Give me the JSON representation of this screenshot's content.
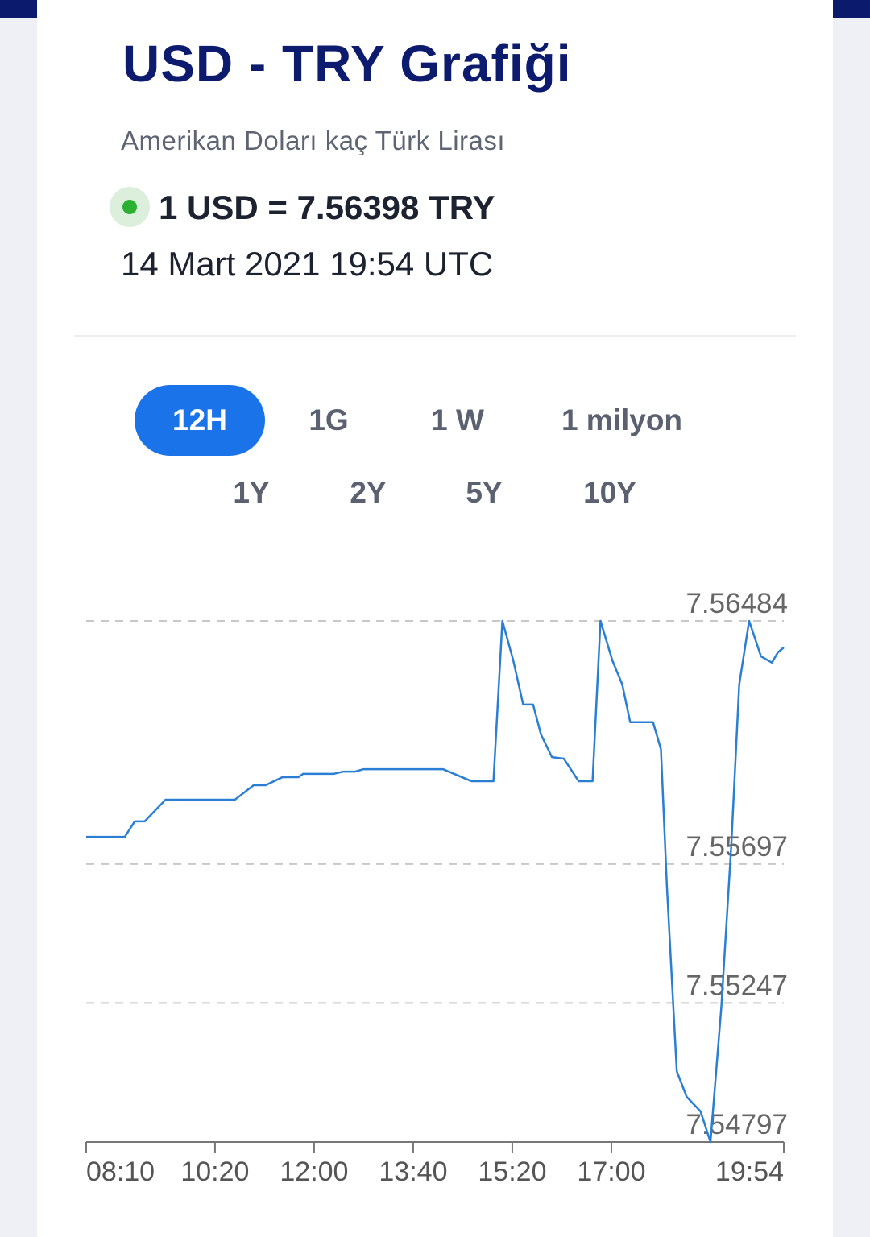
{
  "header": {
    "title": "USD - TRY Grafiği",
    "subtitle": "Amerikan Doları kaç Türk Lirası",
    "rate": "1 USD = 7.56398 TRY",
    "timestamp": "14 Mart 2021 19:54 UTC"
  },
  "tabs": [
    {
      "label": "12H",
      "selected": true
    },
    {
      "label": "1G",
      "selected": false
    },
    {
      "label": "1 W",
      "selected": false
    },
    {
      "label": "1 milyon",
      "selected": false
    },
    {
      "label": "1Y",
      "selected": false
    },
    {
      "label": "2Y",
      "selected": false
    },
    {
      "label": "5Y",
      "selected": false
    },
    {
      "label": "10Y",
      "selected": false
    }
  ],
  "chart_data": {
    "type": "line",
    "color": "#2a7fd4",
    "x": [
      "08:10",
      "08:49",
      "08:59",
      "09:09",
      "09:30",
      "10:40",
      "10:59",
      "11:11",
      "11:28",
      "11:44",
      "11:49",
      "12:20",
      "12:29",
      "12:41",
      "12:50",
      "14:10",
      "14:39",
      "15:01",
      "15:10",
      "15:21",
      "15:31",
      "15:41",
      "15:49",
      "16:00",
      "16:12",
      "16:27",
      "16:41",
      "16:49",
      "17:01",
      "17:11",
      "17:19",
      "17:42",
      "17:50",
      "17:56",
      "18:06",
      "18:16",
      "18:30",
      "18:40",
      "18:51",
      "19:01",
      "19:09",
      "19:19",
      "19:31",
      "19:42",
      "19:48",
      "19:54"
    ],
    "values": [
      7.55785,
      7.55785,
      7.55835,
      7.55835,
      7.55905,
      7.55905,
      7.55952,
      7.55952,
      7.55978,
      7.55978,
      7.55989,
      7.55989,
      7.55996,
      7.55996,
      7.56004,
      7.56004,
      7.55965,
      7.55965,
      7.56484,
      7.56356,
      7.56213,
      7.56213,
      7.56116,
      7.56043,
      7.56038,
      7.55965,
      7.55965,
      7.56484,
      7.56356,
      7.56278,
      7.56156,
      7.56156,
      7.56069,
      7.55626,
      7.55026,
      7.54943,
      7.54896,
      7.54797,
      7.55235,
      7.55757,
      7.56278,
      7.56484,
      7.56369,
      7.56349,
      7.56382,
      7.56398
    ],
    "xlim": [
      "08:10",
      "19:54"
    ],
    "xticks": [
      "08:10",
      "10:20",
      "12:00",
      "13:40",
      "15:20",
      "17:00",
      "19:54"
    ],
    "ylim": [
      7.54797,
      7.56484
    ],
    "yticks": [
      7.54797,
      7.55247,
      7.55697,
      7.56484
    ],
    "grid": true
  }
}
